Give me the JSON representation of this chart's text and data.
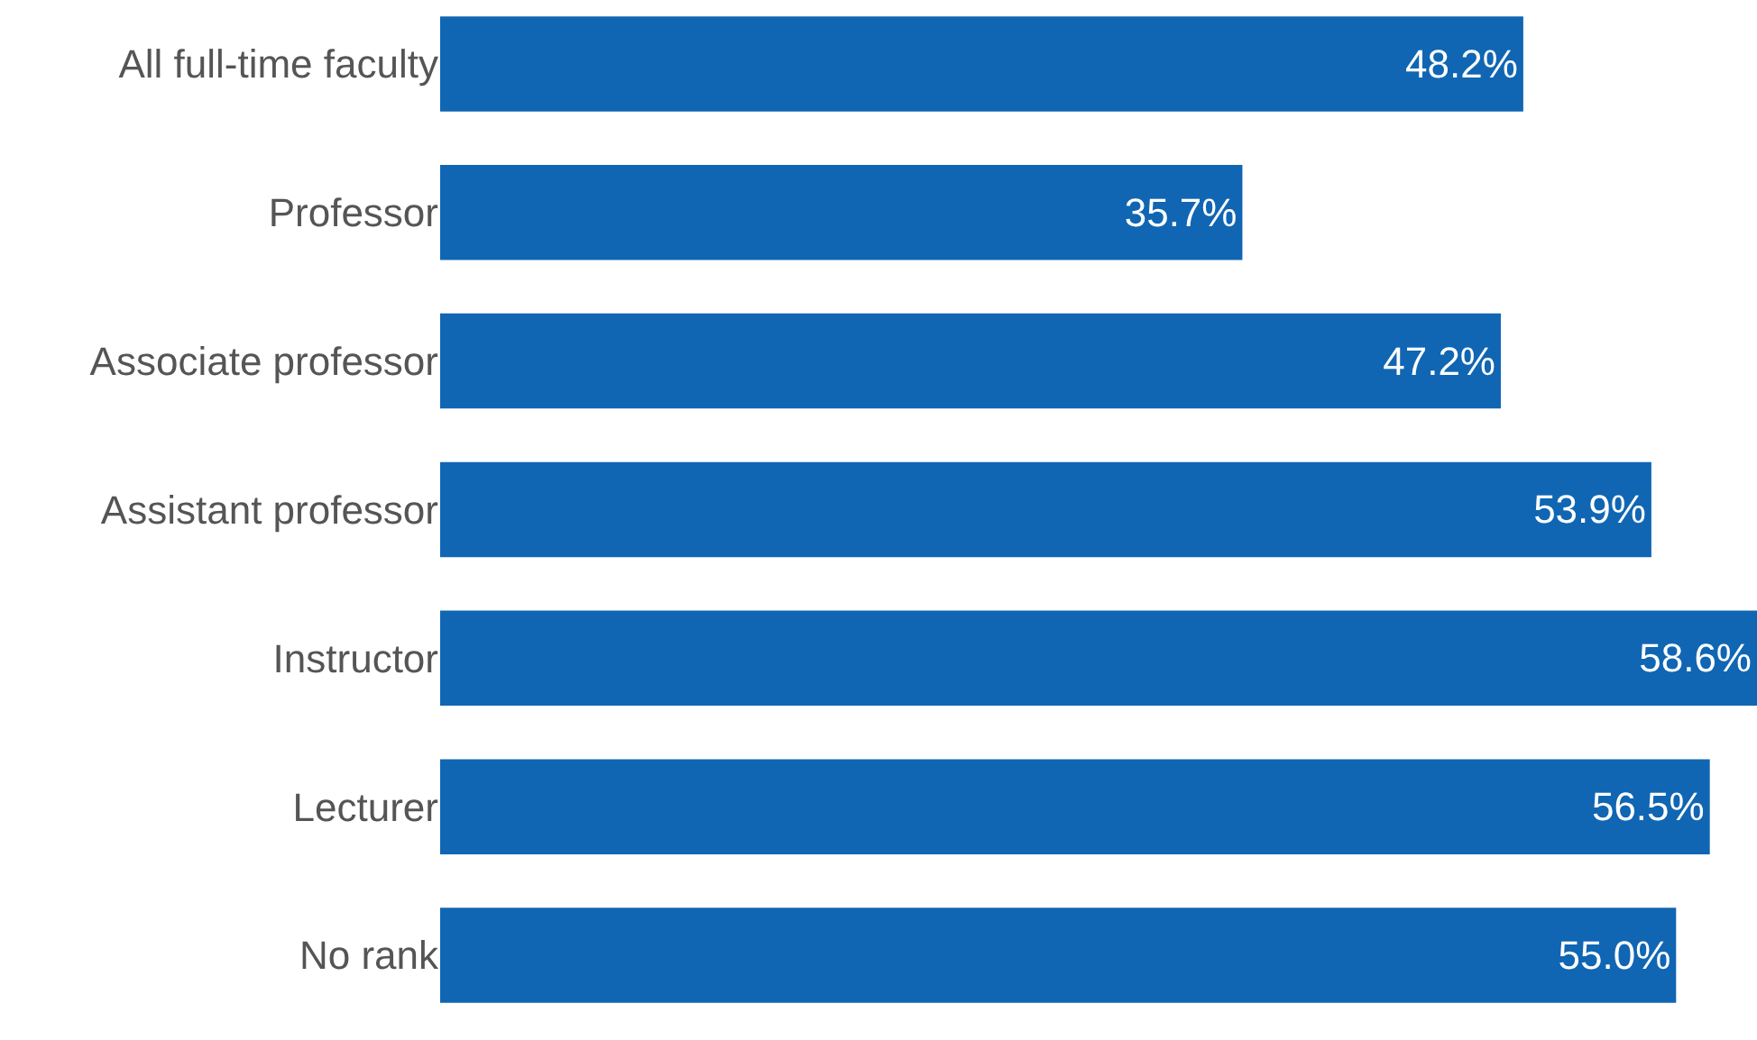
{
  "chart_data": {
    "type": "bar",
    "orientation": "horizontal",
    "categories": [
      "All full-time faculty",
      "Professor",
      "Associate professor",
      "Assistant professor",
      "Instructor",
      "Lecturer",
      "No rank"
    ],
    "values": [
      48.2,
      35.7,
      47.2,
      53.9,
      58.6,
      56.5,
      55.0
    ],
    "value_labels": [
      "48.2%",
      "35.7%",
      "47.2%",
      "53.9%",
      "58.6%",
      "56.5%",
      "55.0%"
    ],
    "color": "#1066b3"
  }
}
